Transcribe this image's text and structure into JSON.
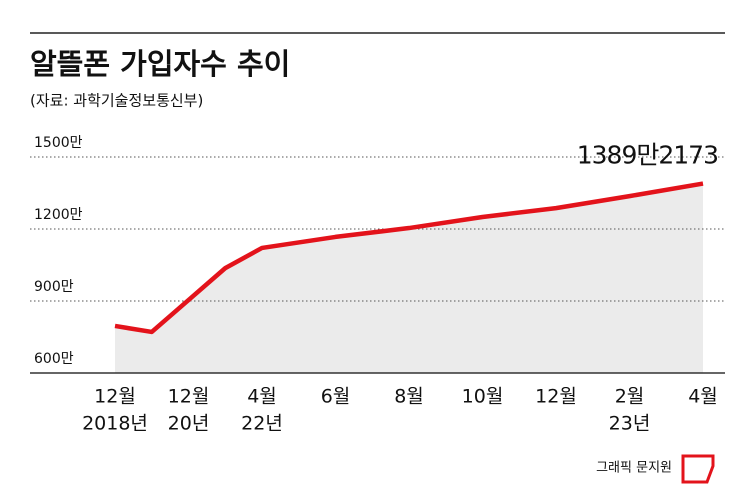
{
  "chart_data": {
    "type": "area",
    "title": "알뜰폰 가입자수 추이",
    "subtitle": "(자료: 과학기술정보통신부)",
    "categories": [
      "12월",
      null,
      "12월",
      null,
      "4월",
      "6월",
      "8월",
      "10월",
      "12월",
      "2월",
      "4월"
    ],
    "x_sublabels": [
      "2018년",
      null,
      "20년",
      null,
      "22년",
      null,
      null,
      null,
      null,
      "23년",
      null
    ],
    "series": [
      {
        "color": "#e3131b",
        "values": [
          796,
          771,
          904,
          1037,
          1121,
          1167,
          1204,
          1250,
          1287,
          1337,
          1389.2173
        ],
        "value_labels": [
          null,
          null,
          null,
          null,
          null,
          null,
          null,
          null,
          null,
          null,
          "1389만2173"
        ]
      }
    ],
    "fill_color": "#ebebeb",
    "ylim": [
      600,
      1500
    ],
    "yticks": [
      {
        "value": 600,
        "label": "600만"
      },
      {
        "value": 900,
        "label": "900만"
      },
      {
        "value": 1200,
        "label": "1200만"
      },
      {
        "value": 1500,
        "label": "1500만"
      }
    ],
    "grid": true,
    "credit": "그래픽 문지원"
  }
}
